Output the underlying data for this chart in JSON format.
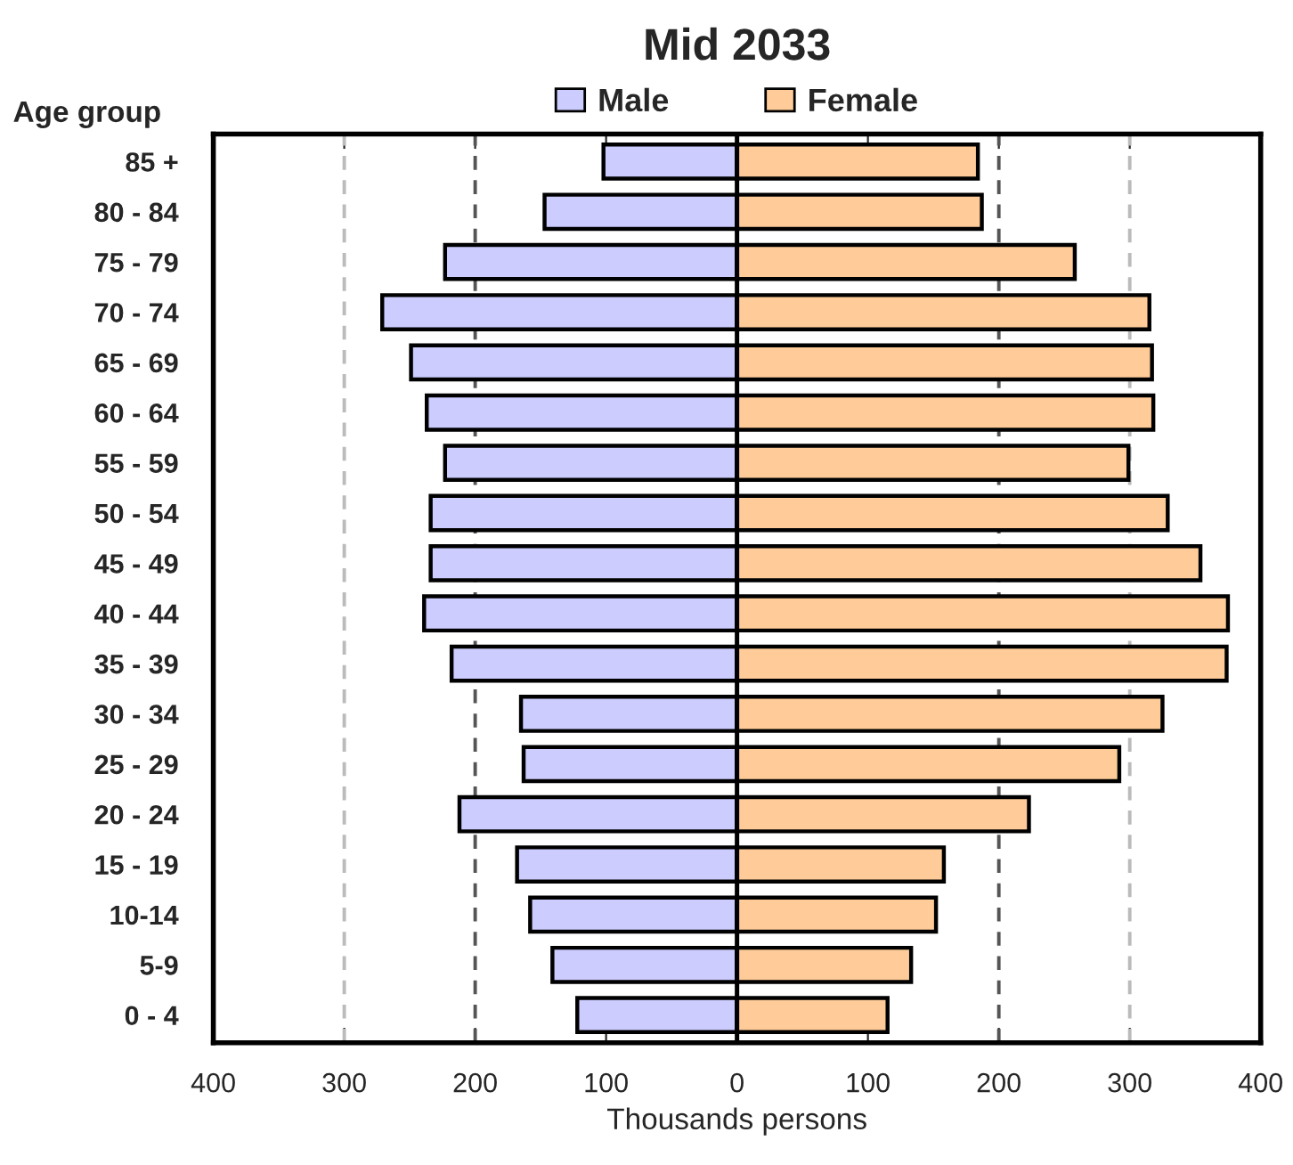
{
  "chart_data": {
    "type": "bar",
    "orientation": "horizontal",
    "stacked": true,
    "legend": "top",
    "title": "Mid 2033",
    "ylabel": "Age group",
    "xlabel": "Thousands persons",
    "categories": [
      "85 +",
      "80 - 84",
      "75 - 79",
      "70 - 74",
      "65 - 69",
      "60 - 64",
      "55 - 59",
      "50 - 54",
      "45 - 49",
      "40 - 44",
      "35 - 39",
      "30 - 34",
      "25 - 29",
      "20 - 24",
      "15 - 19",
      "10-14",
      "5-9",
      "0 - 4"
    ],
    "series": [
      {
        "name": "Male",
        "color": "#ccccff",
        "values": [
          -102,
          -147,
          -223,
          -271,
          -249,
          -237,
          -223,
          -234,
          -234,
          -239,
          -218,
          -165,
          -163,
          -212,
          -168,
          -158,
          -141,
          -122
        ]
      },
      {
        "name": "Female",
        "color": "#ffcc99",
        "values": [
          184,
          187,
          258,
          315,
          317,
          318,
          299,
          329,
          354,
          375,
          374,
          325,
          292,
          223,
          158,
          152,
          133,
          115
        ]
      }
    ],
    "xlim": [
      -400,
      400
    ],
    "xticks": [
      {
        "value": -400,
        "label": "400"
      },
      {
        "value": -300,
        "label": "300"
      },
      {
        "value": -200,
        "label": "200"
      },
      {
        "value": -100,
        "label": "100"
      },
      0,
      100,
      200,
      300,
      400
    ],
    "ref_lines": [
      {
        "axis": "x",
        "value": -300,
        "color": "#bbbbbb",
        "line_style": "dashed"
      },
      {
        "axis": "x",
        "value": -200,
        "color": "#555555",
        "line_style": "dashed"
      },
      {
        "axis": "x",
        "value": 200,
        "color": "#555555",
        "line_style": "dashed"
      },
      {
        "axis": "x",
        "value": 300,
        "color": "#bbbbbb",
        "line_style": "dashed"
      }
    ]
  }
}
